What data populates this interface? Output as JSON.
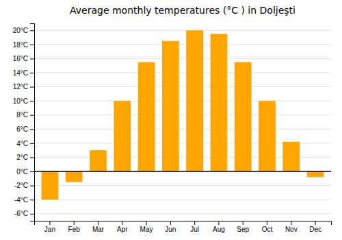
{
  "chart_data": {
    "type": "bar",
    "title": "Average monthly temperatures (°C ) in Doljeşti",
    "categories": [
      "Jan",
      "Feb",
      "Mar",
      "Apr",
      "May",
      "Jun",
      "Jul",
      "Aug",
      "Sep",
      "Oct",
      "Nov",
      "Dec"
    ],
    "values": [
      -4.0,
      -1.5,
      3.0,
      10.0,
      15.5,
      18.5,
      20.0,
      19.5,
      15.5,
      10.0,
      4.2,
      -0.8
    ],
    "color": "#FFA500",
    "ylim": [
      -7,
      21
    ],
    "yticks": [
      {
        "value": -6,
        "label": "-6°C"
      },
      {
        "value": -4,
        "label": "-4°C"
      },
      {
        "value": -2,
        "label": "-2°C"
      },
      {
        "value": 0,
        "label": "0°C"
      },
      {
        "value": 2,
        "label": "2°C"
      },
      {
        "value": 4,
        "label": "4°C"
      },
      {
        "value": 6,
        "label": "6°C"
      },
      {
        "value": 8,
        "label": "8°C"
      },
      {
        "value": 10,
        "label": "10°C"
      },
      {
        "value": 12,
        "label": "12°C"
      },
      {
        "value": 14,
        "label": "14°C"
      },
      {
        "value": 16,
        "label": "16°C"
      },
      {
        "value": 18,
        "label": "18°C"
      },
      {
        "value": 20,
        "label": "20°C"
      }
    ],
    "grid": true
  }
}
